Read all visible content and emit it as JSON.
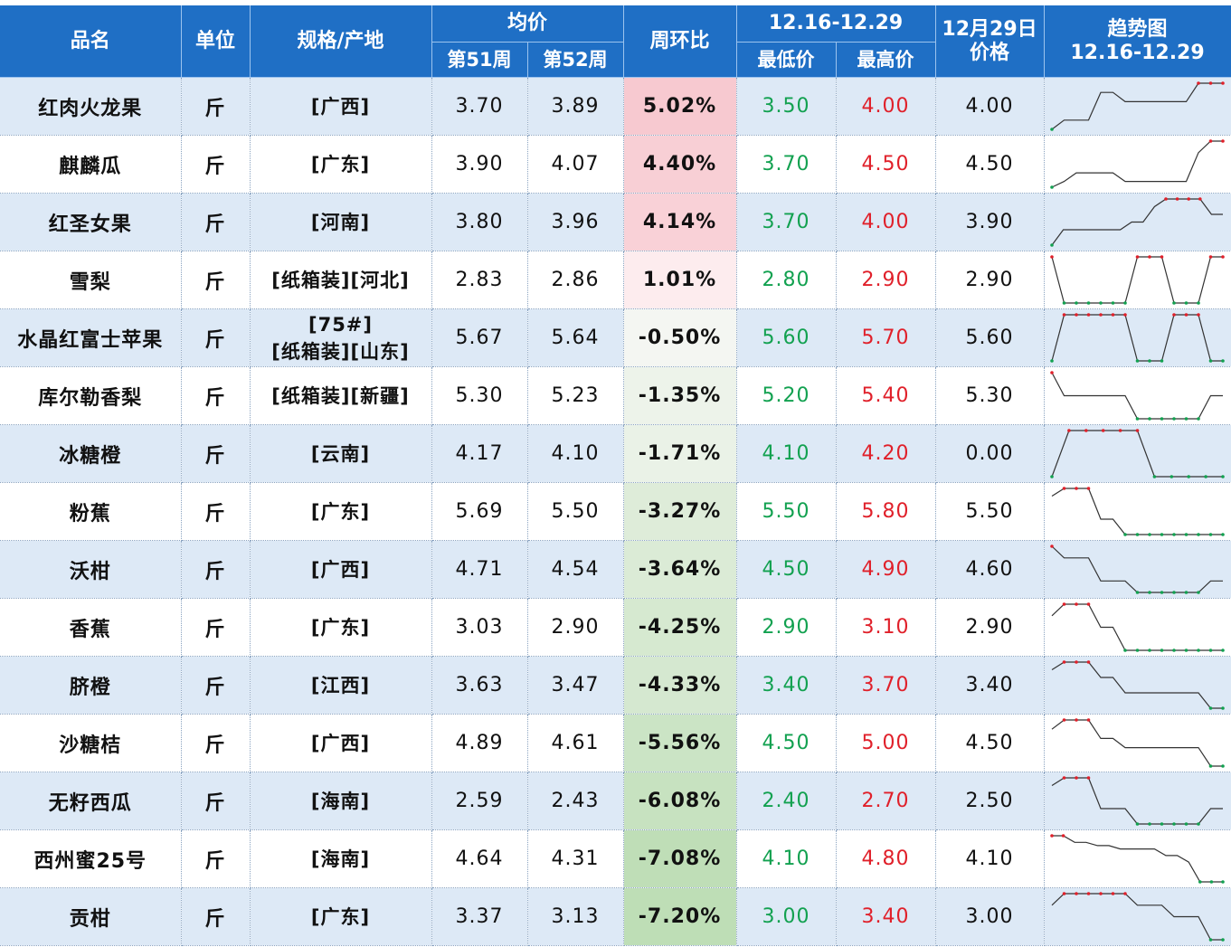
{
  "header": {
    "name": "品名",
    "unit": "单位",
    "spec": "规格/产地",
    "avg": "均价",
    "week51": "第51周",
    "week52": "第52周",
    "change": "周环比",
    "range_title": "12.16-12.29",
    "min": "最低价",
    "max": "最高价",
    "date_line1": "12月29日",
    "date_line2": "价格",
    "trend_line1": "趋势图",
    "trend_line2": "12.16-12.29"
  },
  "colors": {
    "header_bg": "#1f6fc5",
    "row_alt": "#dde9f6",
    "min_green": "#12a150",
    "max_red": "#e0202a",
    "up_pink": "#f4b6c0",
    "down_green": "#c4e1bc"
  },
  "rows": [
    {
      "name": "红肉火龙果",
      "unit": "斤",
      "spec": "[广西]",
      "w51": "3.70",
      "w52": "3.89",
      "chg": "5.02%",
      "chg_value": 5.02,
      "min": "3.50",
      "max": "4.00",
      "price": "4.00",
      "trend": [
        3.5,
        3.6,
        3.6,
        3.6,
        3.9,
        3.9,
        3.8,
        3.8,
        3.8,
        3.8,
        3.8,
        3.8,
        4.0,
        4.0,
        4.0
      ]
    },
    {
      "name": "麒麟瓜",
      "unit": "斤",
      "spec": "[广东]",
      "w51": "3.90",
      "w52": "4.07",
      "chg": "4.40%",
      "chg_value": 4.4,
      "min": "3.70",
      "max": "4.50",
      "price": "4.50",
      "trend": [
        3.7,
        3.8,
        3.95,
        3.95,
        3.95,
        3.95,
        3.8,
        3.8,
        3.8,
        3.8,
        3.8,
        3.8,
        4.3,
        4.5,
        4.5
      ]
    },
    {
      "name": "红圣女果",
      "unit": "斤",
      "spec": "[河南]",
      "w51": "3.80",
      "w52": "3.96",
      "chg": "4.14%",
      "chg_value": 4.14,
      "min": "3.70",
      "max": "4.00",
      "price": "3.90",
      "trend": [
        3.7,
        3.8,
        3.8,
        3.8,
        3.8,
        3.8,
        3.8,
        3.85,
        3.85,
        3.95,
        4.0,
        4.0,
        4.0,
        4.0,
        3.9,
        3.9
      ]
    },
    {
      "name": "雪梨",
      "unit": "斤",
      "spec": "[纸箱装][河北]",
      "w51": "2.83",
      "w52": "2.86",
      "chg": "1.01%",
      "chg_value": 1.01,
      "min": "2.80",
      "max": "2.90",
      "price": "2.90",
      "trend": [
        2.9,
        2.8,
        2.8,
        2.8,
        2.8,
        2.8,
        2.8,
        2.9,
        2.9,
        2.9,
        2.8,
        2.8,
        2.8,
        2.9,
        2.9
      ]
    },
    {
      "name": "水晶红富士苹果",
      "unit": "斤",
      "spec_line1": "[75#]",
      "spec": "[纸箱装][山东]",
      "w51": "5.67",
      "w52": "5.64",
      "chg": "-0.50%",
      "chg_value": -0.5,
      "min": "5.60",
      "max": "5.70",
      "price": "5.60",
      "trend": [
        5.6,
        5.7,
        5.7,
        5.7,
        5.7,
        5.7,
        5.7,
        5.6,
        5.6,
        5.6,
        5.7,
        5.7,
        5.7,
        5.6,
        5.6
      ]
    },
    {
      "name": "库尔勒香梨",
      "unit": "斤",
      "spec": "[纸箱装][新疆]",
      "w51": "5.30",
      "w52": "5.23",
      "chg": "-1.35%",
      "chg_value": -1.35,
      "min": "5.20",
      "max": "5.40",
      "price": "5.30",
      "trend": [
        5.4,
        5.3,
        5.3,
        5.3,
        5.3,
        5.3,
        5.3,
        5.2,
        5.2,
        5.2,
        5.2,
        5.2,
        5.2,
        5.3,
        5.3
      ]
    },
    {
      "name": "冰糖橙",
      "unit": "斤",
      "spec": "[云南]",
      "w51": "4.17",
      "w52": "4.10",
      "chg": "-1.71%",
      "chg_value": -1.71,
      "min": "4.10",
      "max": "4.20",
      "price": "0.00",
      "trend": [
        4.1,
        4.2,
        4.2,
        4.2,
        4.2,
        4.2,
        4.1,
        4.1,
        4.1,
        4.1,
        4.1
      ]
    },
    {
      "name": "粉蕉",
      "unit": "斤",
      "spec": "[广东]",
      "w51": "5.69",
      "w52": "5.50",
      "chg": "-3.27%",
      "chg_value": -3.27,
      "min": "5.50",
      "max": "5.80",
      "price": "5.50",
      "trend": [
        5.75,
        5.8,
        5.8,
        5.8,
        5.6,
        5.6,
        5.5,
        5.5,
        5.5,
        5.5,
        5.5,
        5.5,
        5.5,
        5.5,
        5.5
      ]
    },
    {
      "name": "沃柑",
      "unit": "斤",
      "spec": "[广西]",
      "w51": "4.71",
      "w52": "4.54",
      "chg": "-3.64%",
      "chg_value": -3.64,
      "min": "4.50",
      "max": "4.90",
      "price": "4.60",
      "trend": [
        4.9,
        4.8,
        4.8,
        4.8,
        4.6,
        4.6,
        4.6,
        4.5,
        4.5,
        4.5,
        4.5,
        4.5,
        4.5,
        4.6,
        4.6
      ]
    },
    {
      "name": "香蕉",
      "unit": "斤",
      "spec": "[广东]",
      "w51": "3.03",
      "w52": "2.90",
      "chg": "-4.25%",
      "chg_value": -4.25,
      "min": "2.90",
      "max": "3.10",
      "price": "2.90",
      "trend": [
        3.05,
        3.1,
        3.1,
        3.1,
        3.0,
        3.0,
        2.9,
        2.9,
        2.9,
        2.9,
        2.9,
        2.9,
        2.9,
        2.9,
        2.9
      ]
    },
    {
      "name": "脐橙",
      "unit": "斤",
      "spec": "[江西]",
      "w51": "3.63",
      "w52": "3.47",
      "chg": "-4.33%",
      "chg_value": -4.33,
      "min": "3.40",
      "max": "3.70",
      "price": "3.40",
      "trend": [
        3.65,
        3.7,
        3.7,
        3.7,
        3.6,
        3.6,
        3.5,
        3.5,
        3.5,
        3.5,
        3.5,
        3.5,
        3.5,
        3.4,
        3.4
      ]
    },
    {
      "name": "沙糖桔",
      "unit": "斤",
      "spec": "[广西]",
      "w51": "4.89",
      "w52": "4.61",
      "chg": "-5.56%",
      "chg_value": -5.56,
      "min": "4.50",
      "max": "5.00",
      "price": "4.50",
      "trend": [
        4.9,
        5.0,
        5.0,
        5.0,
        4.8,
        4.8,
        4.7,
        4.7,
        4.7,
        4.7,
        4.7,
        4.7,
        4.7,
        4.5,
        4.5
      ]
    },
    {
      "name": "无籽西瓜",
      "unit": "斤",
      "spec": "[海南]",
      "w51": "2.59",
      "w52": "2.43",
      "chg": "-6.08%",
      "chg_value": -6.08,
      "min": "2.40",
      "max": "2.70",
      "price": "2.50",
      "trend": [
        2.65,
        2.7,
        2.7,
        2.7,
        2.5,
        2.5,
        2.5,
        2.4,
        2.4,
        2.4,
        2.4,
        2.4,
        2.4,
        2.5,
        2.5
      ]
    },
    {
      "name": "西州蜜25号",
      "unit": "斤",
      "spec": "[海南]",
      "w51": "4.64",
      "w52": "4.31",
      "chg": "-7.08%",
      "chg_value": -7.08,
      "min": "4.10",
      "max": "4.80",
      "price": "4.10",
      "trend": [
        4.8,
        4.8,
        4.7,
        4.7,
        4.65,
        4.65,
        4.6,
        4.6,
        4.6,
        4.6,
        4.5,
        4.5,
        4.4,
        4.1,
        4.1,
        4.1
      ]
    },
    {
      "name": "贡柑",
      "unit": "斤",
      "spec": "[广东]",
      "w51": "3.37",
      "w52": "3.13",
      "chg": "-7.20%",
      "chg_value": -7.2,
      "min": "3.00",
      "max": "3.40",
      "price": "3.00",
      "trend": [
        3.3,
        3.4,
        3.4,
        3.4,
        3.4,
        3.4,
        3.4,
        3.3,
        3.3,
        3.3,
        3.2,
        3.2,
        3.2,
        3.0,
        3.0
      ]
    }
  ]
}
